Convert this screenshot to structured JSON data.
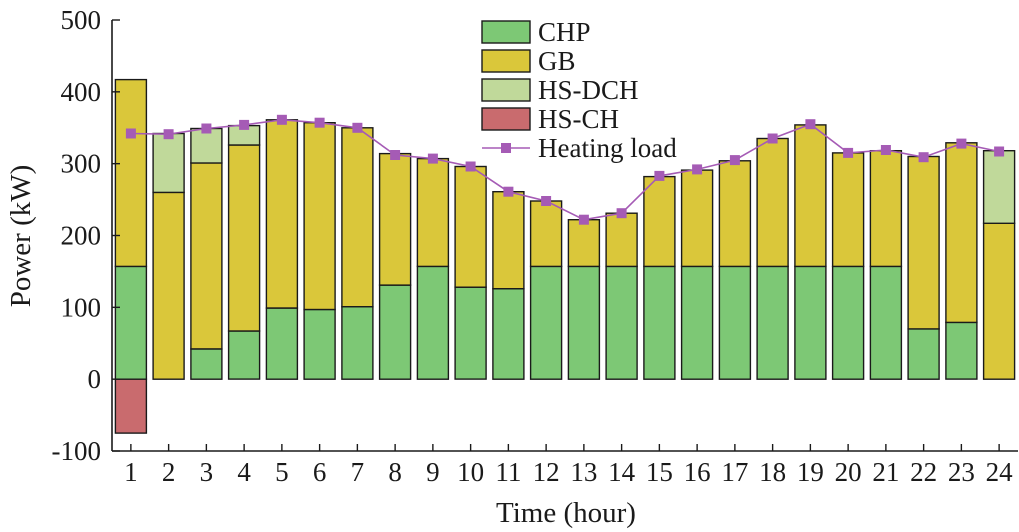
{
  "chart_data": {
    "type": "bar",
    "stacked": true,
    "xlabel": "Time (hour)",
    "ylabel": "Power (kW)",
    "ylim": [
      -100,
      500
    ],
    "yticks": [
      -100,
      0,
      100,
      200,
      300,
      400,
      500
    ],
    "grid": false,
    "legend_position": "top-center",
    "categories": [
      "1",
      "2",
      "3",
      "4",
      "5",
      "6",
      "7",
      "8",
      "9",
      "10",
      "11",
      "12",
      "13",
      "14",
      "15",
      "16",
      "17",
      "18",
      "19",
      "20",
      "21",
      "22",
      "23",
      "24"
    ],
    "series": [
      {
        "name": "CHP",
        "kind": "bar",
        "color": "#7dc875",
        "values": [
          157,
          0,
          42,
          67,
          99,
          97,
          101,
          131,
          157,
          128,
          126,
          157,
          157,
          157,
          157,
          157,
          157,
          157,
          157,
          157,
          157,
          70,
          79,
          0
        ]
      },
      {
        "name": "GB",
        "kind": "bar",
        "color": "#dac73a",
        "values": [
          260,
          260,
          259,
          259,
          262,
          260,
          249,
          183,
          150,
          168,
          135,
          91,
          65,
          74,
          125,
          134,
          147,
          178,
          197,
          158,
          161,
          240,
          250,
          217
        ]
      },
      {
        "name": "HS-DCH",
        "kind": "bar",
        "color": "#c0d99a",
        "values": [
          0,
          82,
          48,
          27,
          0,
          0,
          0,
          0,
          0,
          0,
          0,
          0,
          0,
          0,
          0,
          0,
          0,
          0,
          0,
          0,
          0,
          0,
          0,
          101
        ]
      },
      {
        "name": "HS-CH",
        "kind": "bar",
        "color": "#c96b6e",
        "values": [
          -75,
          0,
          0,
          0,
          0,
          0,
          0,
          0,
          0,
          0,
          0,
          0,
          0,
          0,
          0,
          0,
          0,
          0,
          0,
          0,
          0,
          0,
          0,
          0
        ]
      },
      {
        "name": "Heating load",
        "kind": "line",
        "color": "#a55bb5",
        "values": [
          342,
          341,
          349,
          354,
          361,
          357,
          350,
          312,
          307,
          296,
          261,
          248,
          222,
          231,
          283,
          292,
          305,
          335,
          355,
          315,
          319,
          309,
          328,
          317
        ]
      }
    ]
  }
}
